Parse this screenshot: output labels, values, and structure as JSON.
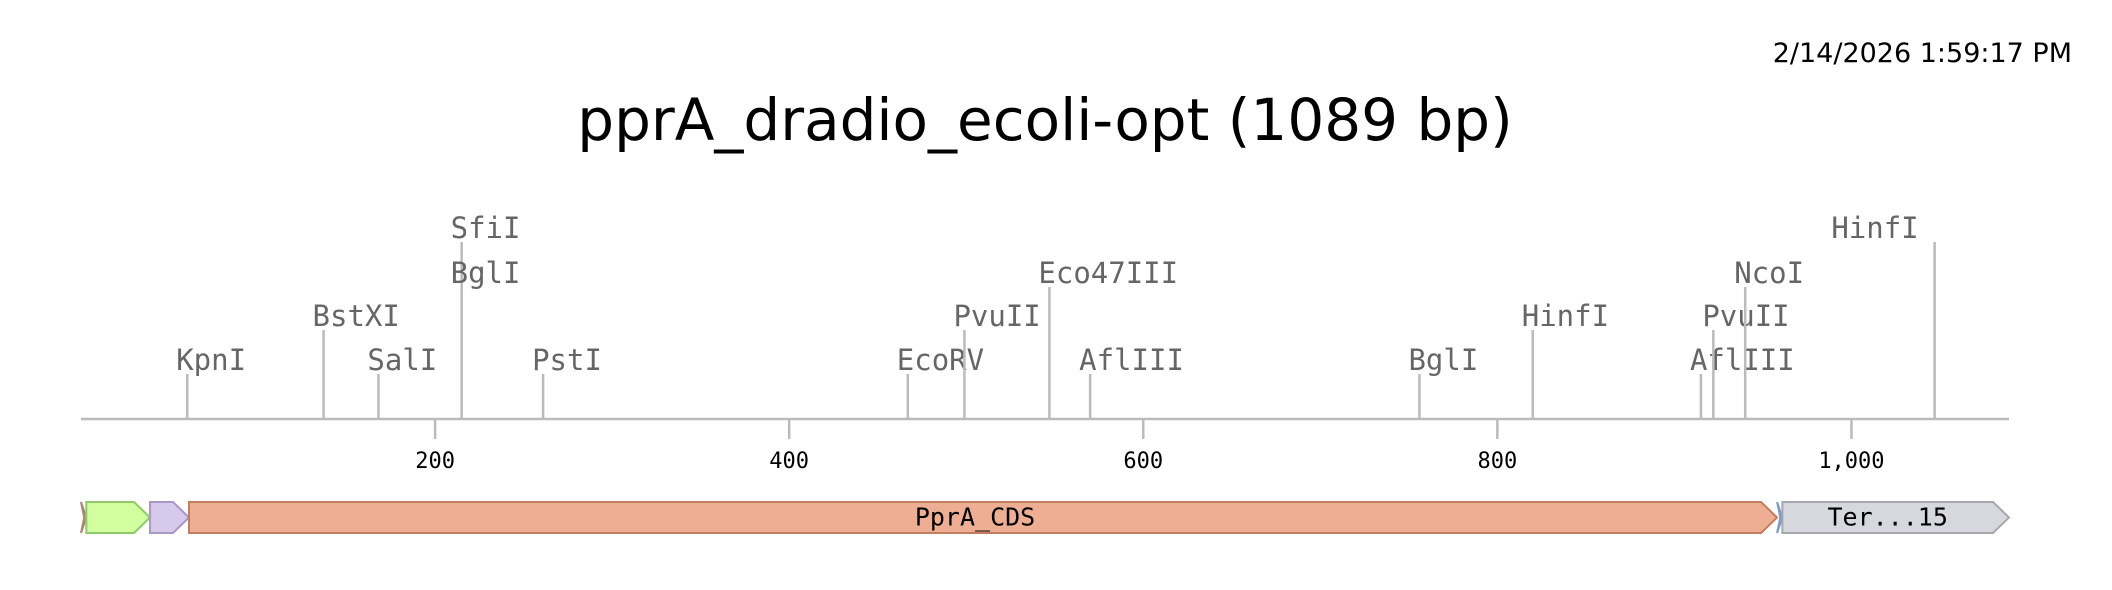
{
  "timestamp": "2/14/2026 1:59:17 PM",
  "title": "pprA_dradio_ecoli-opt (1089 bp)",
  "sequence_length": 1089,
  "axis": {
    "ticks": [
      200,
      400,
      600,
      800,
      1000
    ],
    "tick_labels": [
      "200",
      "400",
      "600",
      "800",
      "1,000"
    ]
  },
  "cut_sites": [
    {
      "name": "KpnI",
      "position": 60,
      "row": 1
    },
    {
      "name": "BstXI",
      "position": 137,
      "row": 2
    },
    {
      "name": "SalI",
      "position": 168,
      "row": 1
    },
    {
      "name": "SfiI",
      "position": 215,
      "row": 4
    },
    {
      "name": "BglI",
      "position": 215,
      "row": 3,
      "shared_line": true
    },
    {
      "name": "PstI",
      "position": 261,
      "row": 1
    },
    {
      "name": "EcoRV",
      "position": 467,
      "row": 1
    },
    {
      "name": "PvuII",
      "position": 499,
      "row": 2
    },
    {
      "name": "Eco47III",
      "position": 547,
      "row": 3
    },
    {
      "name": "AflIII",
      "position": 570,
      "row": 1
    },
    {
      "name": "BglI",
      "position": 756,
      "row": 1
    },
    {
      "name": "HinfI",
      "position": 820,
      "row": 2
    },
    {
      "name": "AflIII",
      "position": 915,
      "row": 1
    },
    {
      "name": "PvuII",
      "position": 922,
      "row": 2
    },
    {
      "name": "NcoI",
      "position": 940,
      "row": 3
    },
    {
      "name": "HinfI",
      "position": 1047,
      "row": 4,
      "label_left": true
    }
  ],
  "features": [
    {
      "label": "",
      "start": 0,
      "end": 3,
      "fill": "#c9a98c",
      "stroke": "#a88a70"
    },
    {
      "label": "",
      "start": 3,
      "end": 39,
      "fill": "#d2ff9f",
      "stroke": "#8fca6a"
    },
    {
      "label": "",
      "start": 39,
      "end": 61,
      "fill": "#d6c9ea",
      "stroke": "#a898c6"
    },
    {
      "label": "PprA_CDS",
      "start": 61,
      "end": 958,
      "fill": "#edae94",
      "stroke": "#c27c60"
    },
    {
      "label": "",
      "start": 958,
      "end": 961,
      "fill": "#9db8da",
      "stroke": "#7e9cc4"
    },
    {
      "label": "Ter...15",
      "start": 961,
      "end": 1089,
      "fill": "#d6d8de",
      "stroke": "#a6a8ae"
    }
  ],
  "colors": {
    "axis": "#bbbbbb",
    "cut_label": "#666666",
    "tick_label": "#000000"
  }
}
